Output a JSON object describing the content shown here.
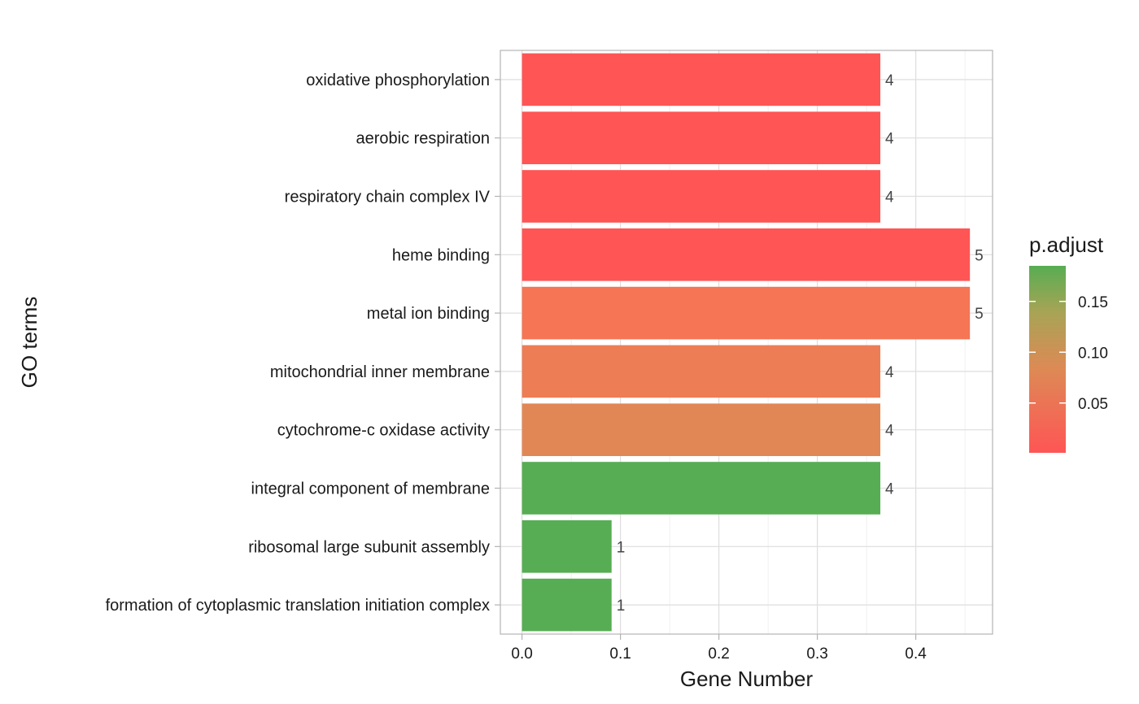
{
  "chart_data": {
    "type": "bar",
    "orientation": "horizontal",
    "xlabel": "Gene Number",
    "ylabel": "GO terms",
    "xlim": [
      -0.022,
      0.478
    ],
    "x_ticks": [
      "0.0",
      "0.1",
      "0.2",
      "0.3",
      "0.4"
    ],
    "categories": [
      "oxidative phosphorylation",
      "aerobic respiration",
      "respiratory chain complex IV",
      "heme binding",
      "metal ion binding",
      "mitochondrial inner membrane",
      "cytochrome-c oxidase activity",
      "integral component of membrane",
      "ribosomal large subunit assembly",
      "formation of cytoplasmic translation initiation complex"
    ],
    "values": [
      0.364,
      0.364,
      0.364,
      0.455,
      0.455,
      0.364,
      0.364,
      0.364,
      0.091,
      0.091
    ],
    "data_labels": [
      "4",
      "4",
      "4",
      "5",
      "5",
      "4",
      "4",
      "4",
      "1",
      "1"
    ],
    "bar_colors": [
      "#ff5555",
      "#ff5555",
      "#ff5555",
      "#ff5555",
      "#f57555",
      "#ed7d55",
      "#e18755",
      "#57ad53",
      "#57ad53",
      "#57ad53"
    ],
    "grid": true,
    "legend": {
      "title": "p.adjust",
      "placement": "right",
      "ticks": [
        "0.15",
        "0.10",
        "0.05"
      ],
      "tick_values": [
        0.15,
        0.1,
        0.05
      ],
      "range": [
        0.001,
        0.185
      ],
      "gradient_low": "#ff5555",
      "gradient_high": "#57ad53"
    }
  }
}
